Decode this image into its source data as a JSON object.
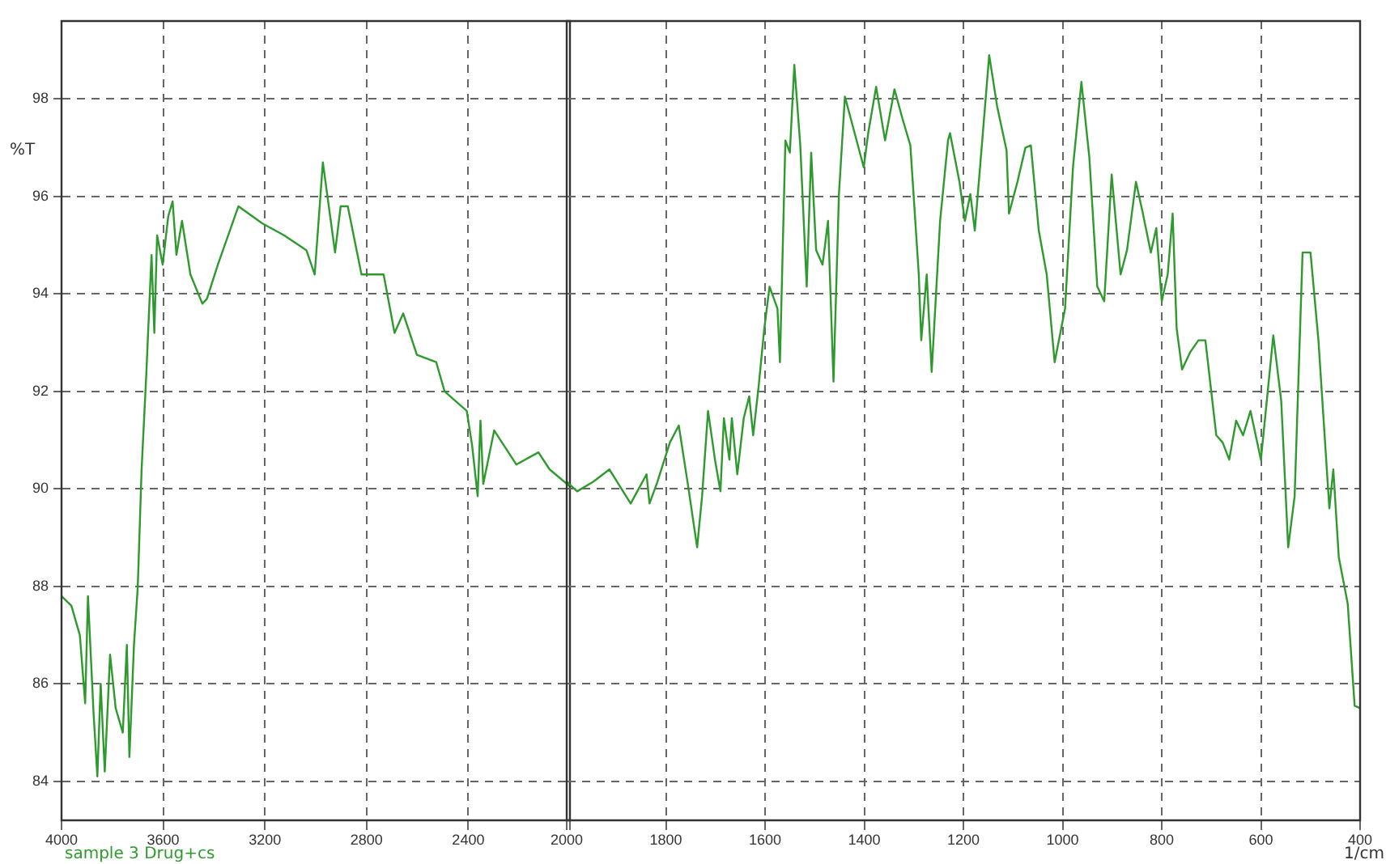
{
  "chart_data": [
    {
      "type": "line",
      "ylabel": "%T",
      "annotations": [
        "sample 3 Drug+cs"
      ],
      "grid": true,
      "marker": "none",
      "xlim": [
        4000,
        2000
      ],
      "xticks": [
        4000,
        3600,
        3200,
        2800,
        2400,
        {
          "value": 2000,
          "label": null
        }
      ],
      "ylim": [
        83.2,
        99.6
      ],
      "yticks": [
        84,
        86,
        88,
        90,
        92,
        94,
        96,
        98
      ],
      "x": [
        4000,
        3961,
        3928,
        3907,
        3896,
        3874,
        3859,
        3846,
        3830,
        3809,
        3787,
        3759,
        3743,
        3733,
        3715,
        3700,
        3685,
        3667,
        3646,
        3635,
        3624,
        3602,
        3580,
        3563,
        3548,
        3526,
        3493,
        3446,
        3428,
        3385,
        3304,
        3211,
        3124,
        3037,
        3004,
        2972,
        2924,
        2902,
        2874,
        2820,
        2733,
        2690,
        2656,
        2602,
        2526,
        2493,
        2406,
        2385,
        2363,
        2352,
        2341,
        2298,
        2211,
        2124,
        2080,
        2000
      ],
      "series": [
        {
          "color": "#2e9a2e",
          "values": [
            87.8,
            87.6,
            87.0,
            85.6,
            87.8,
            85.4,
            84.1,
            86.0,
            84.2,
            86.6,
            85.5,
            85.0,
            86.8,
            84.5,
            86.8,
            88.0,
            90.4,
            92.3,
            94.8,
            93.2,
            95.2,
            94.6,
            95.6,
            95.9,
            94.8,
            95.5,
            94.4,
            93.8,
            93.9,
            94.6,
            95.8,
            95.45,
            95.2,
            94.9,
            94.4,
            96.7,
            94.85,
            95.8,
            95.8,
            94.4,
            94.4,
            93.2,
            93.6,
            92.75,
            92.6,
            92.0,
            91.6,
            90.9,
            89.85,
            91.4,
            90.1,
            91.2,
            90.5,
            90.75,
            90.4,
            90.05
          ]
        }
      ]
    },
    {
      "type": "line",
      "xlabel": "1/cm",
      "grid": true,
      "marker": "none",
      "tick_labels": "x",
      "xlim": [
        2000,
        400
      ],
      "xticks": [
        2000,
        1800,
        1600,
        1400,
        1200,
        1000,
        800,
        600,
        400
      ],
      "ylim": [
        83.2,
        99.6
      ],
      "yticks": [
        84,
        86,
        88,
        90,
        92,
        94,
        96,
        98
      ],
      "x": [
        2000,
        1979,
        1946,
        1914,
        1871,
        1855,
        1839,
        1833,
        1817,
        1792,
        1774,
        1755,
        1737,
        1727,
        1715,
        1701,
        1690,
        1683,
        1672,
        1667,
        1656,
        1643,
        1632,
        1624,
        1613,
        1602,
        1591,
        1575,
        1570,
        1559,
        1550,
        1541,
        1529,
        1516,
        1507,
        1497,
        1484,
        1473,
        1462,
        1451,
        1439,
        1422,
        1401,
        1392,
        1376,
        1358,
        1339,
        1323,
        1307,
        1290,
        1285,
        1274,
        1264,
        1247,
        1231,
        1227,
        1208,
        1197,
        1186,
        1177,
        1162,
        1148,
        1132,
        1113,
        1108,
        1091,
        1075,
        1064,
        1048,
        1032,
        1016,
        995,
        979,
        962,
        946,
        930,
        916,
        901,
        883,
        870,
        852,
        838,
        822,
        811,
        800,
        788,
        778,
        770,
        759,
        743,
        726,
        712,
        690,
        677,
        664,
        650,
        636,
        621,
        600,
        575,
        559,
        545,
        532,
        516,
        500,
        484,
        462,
        454,
        443,
        425,
        411,
        400
      ],
      "series": [
        {
          "color": "#2e9a2e",
          "values": [
            90.15,
            89.95,
            90.15,
            90.4,
            89.7,
            90.0,
            90.3,
            89.7,
            90.15,
            90.95,
            91.3,
            90.05,
            88.8,
            89.85,
            91.6,
            90.6,
            89.95,
            91.45,
            90.6,
            91.45,
            90.3,
            91.45,
            91.9,
            91.1,
            92.1,
            93.25,
            94.15,
            93.7,
            92.6,
            97.15,
            96.9,
            98.7,
            97.05,
            94.15,
            96.9,
            94.9,
            94.6,
            95.5,
            92.2,
            96.05,
            98.05,
            97.4,
            96.6,
            97.3,
            98.25,
            97.15,
            98.2,
            97.6,
            97.05,
            94.4,
            93.05,
            94.4,
            92.4,
            95.5,
            97.15,
            97.3,
            96.3,
            95.5,
            96.05,
            95.3,
            97.15,
            98.9,
            97.85,
            96.95,
            95.65,
            96.3,
            97.0,
            97.05,
            95.3,
            94.4,
            92.6,
            93.7,
            96.6,
            98.35,
            96.8,
            94.15,
            93.85,
            96.45,
            94.4,
            94.9,
            96.3,
            95.65,
            94.85,
            95.35,
            93.85,
            94.4,
            95.65,
            93.3,
            92.45,
            92.8,
            93.05,
            93.05,
            91.1,
            90.95,
            90.6,
            91.4,
            91.1,
            91.6,
            90.6,
            93.15,
            91.8,
            88.8,
            89.85,
            94.85,
            94.85,
            93.05,
            89.6,
            90.4,
            88.6,
            87.65,
            85.55,
            85.5
          ]
        }
      ]
    }
  ]
}
